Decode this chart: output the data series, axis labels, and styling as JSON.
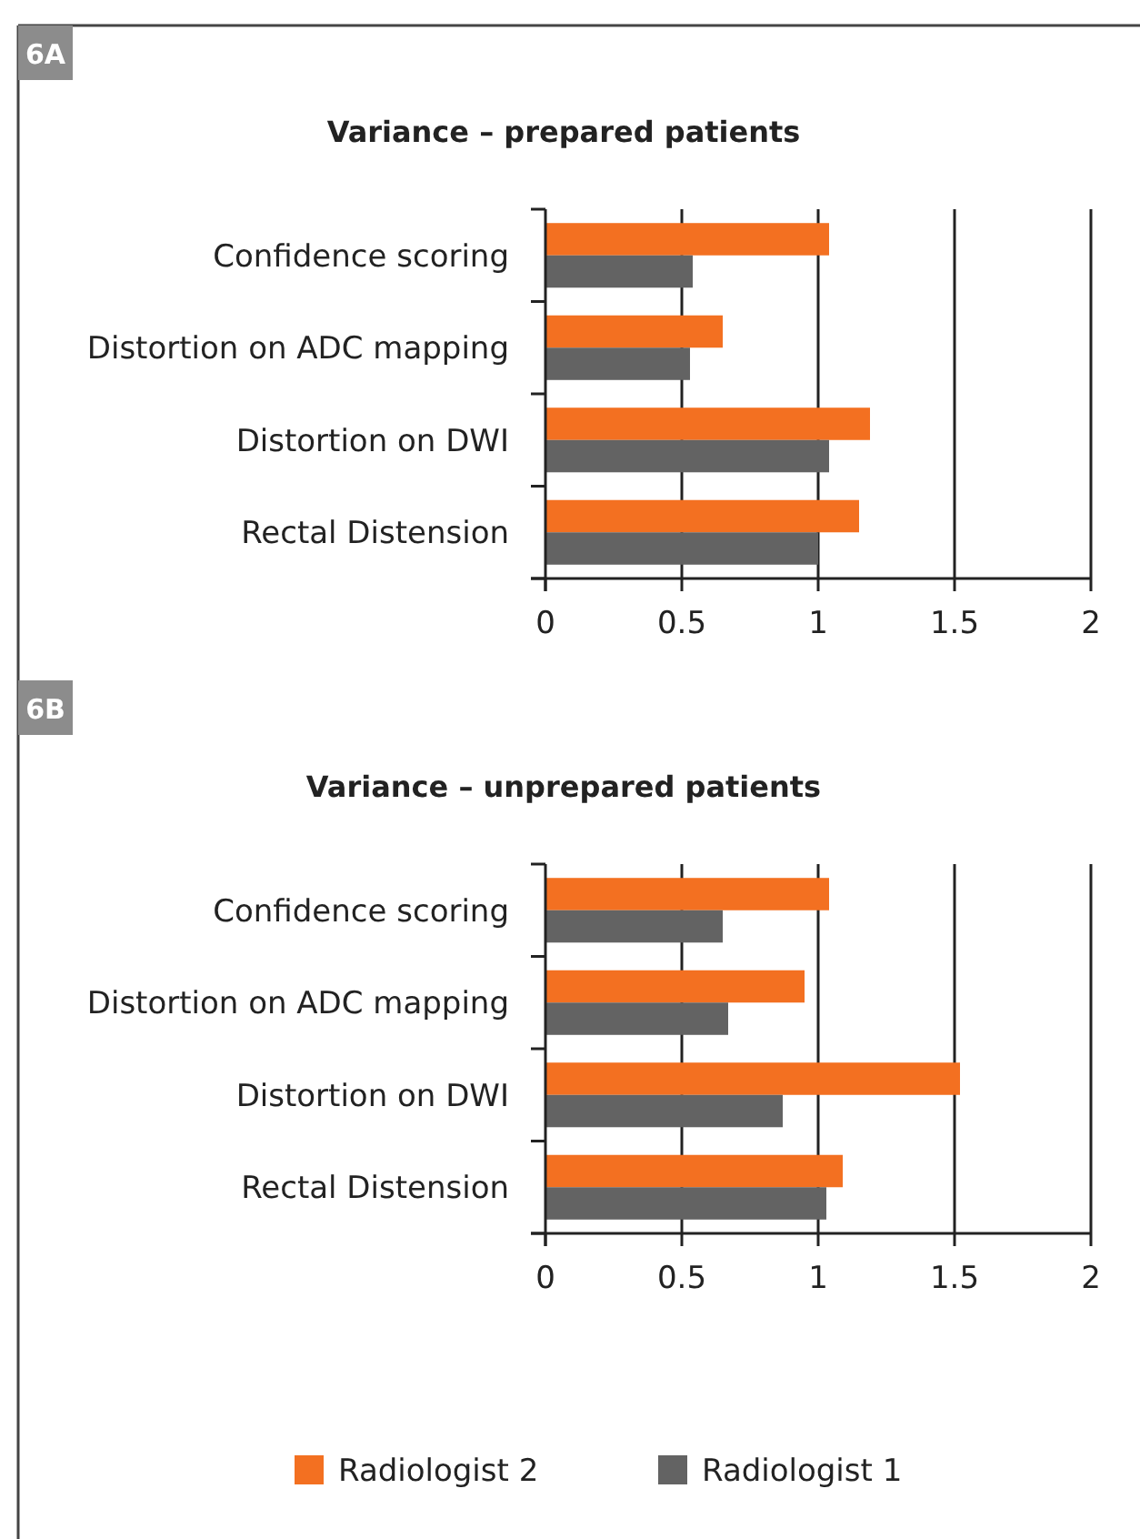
{
  "chart_data": [
    {
      "type": "bar",
      "orientation": "horizontal",
      "title": "Variance – prepared patients",
      "annotations": [
        "6A"
      ],
      "categories": [
        "Confidence scoring",
        "Distortion on ADC mapping",
        "Distortion on DWI",
        "Rectal Distension"
      ],
      "series": [
        {
          "color": "#f37021",
          "values": [
            1.04,
            0.65,
            1.19,
            1.15
          ]
        },
        {
          "color": "#636363",
          "values": [
            0.54,
            0.53,
            1.04,
            1.0
          ]
        }
      ],
      "xlim": [
        0,
        2
      ],
      "xticks": [
        0,
        0.5,
        1,
        1.5,
        2
      ],
      "grid": "x"
    },
    {
      "type": "bar",
      "orientation": "horizontal",
      "title": "Variance – unprepared patients",
      "annotations": [
        "6B"
      ],
      "categories": [
        "Confidence scoring",
        "Distortion on ADC mapping",
        "Distortion on DWI",
        "Rectal Distension"
      ],
      "series": [
        {
          "name": "Radiologist 2",
          "color": "#f37021",
          "values": [
            1.04,
            0.95,
            1.52,
            1.09
          ]
        },
        {
          "name": "Radiologist 1",
          "color": "#636363",
          "values": [
            0.65,
            0.67,
            0.87,
            1.03
          ]
        }
      ],
      "xlim": [
        0,
        2
      ],
      "xticks": [
        0,
        0.5,
        1,
        1.5,
        2
      ],
      "grid": "x",
      "legend": "bottom"
    }
  ]
}
